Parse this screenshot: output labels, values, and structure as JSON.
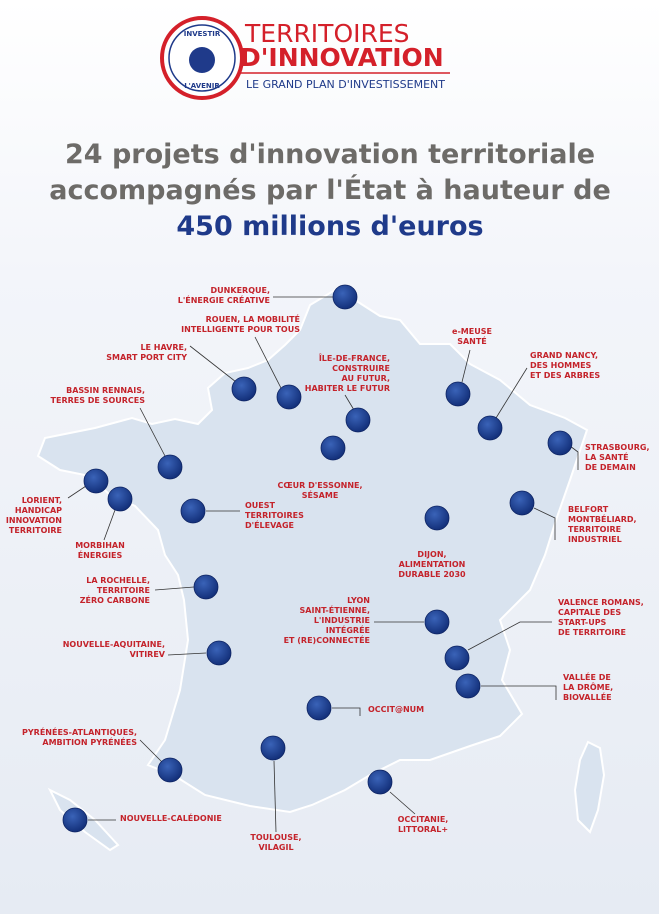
{
  "header": {
    "logo_top": "INVESTIR",
    "logo_bottom": "L'AVENIR",
    "line1": "TERRITOIRES",
    "line2": "D'INNOVATION",
    "line3": "LE GRAND PLAN D'INVESTISSEMENT"
  },
  "title": {
    "line1": "24 projets d'innovation territoriale",
    "line2": "accompagnés par l'État à hauteur de",
    "line3": "450 millions d'euros"
  },
  "projects": [
    {
      "label": [
        "DUNKERQUE,",
        "L'ÉNERGIE CRÉATIVE"
      ]
    },
    {
      "label": [
        "ROUEN, LA MOBILITÉ",
        "INTELLIGENTE POUR TOUS"
      ]
    },
    {
      "label": [
        "LE HAVRE,",
        "SMART PORT CITY"
      ]
    },
    {
      "label": [
        "ÎLE-DE-FRANCE,",
        "CONSTRUIRE",
        "AU FUTUR,",
        "HABITER LE FUTUR"
      ]
    },
    {
      "label": [
        "e-MEUSE",
        "SANTÉ"
      ]
    },
    {
      "label": [
        "GRAND NANCY,",
        "DES HOMMES",
        "ET DES ARBRES"
      ]
    },
    {
      "label": [
        "STRASBOURG,",
        "LA SANTÉ",
        "DE DEMAIN"
      ]
    },
    {
      "label": [
        "BASSIN RENNAIS,",
        "TERRES DE SOURCES"
      ]
    },
    {
      "label": [
        "CŒUR D'ESSONNE,",
        "SÉSAME"
      ]
    },
    {
      "label": [
        "LORIENT,",
        "HANDICAP",
        "INNOVATION",
        "TERRITOIRE"
      ]
    },
    {
      "label": [
        "MORBIHAN",
        "ÉNERGIES"
      ]
    },
    {
      "label": [
        "OUEST",
        "TERRITOIRES",
        "D'ÉLEVAGE"
      ]
    },
    {
      "label": [
        "BELFORT",
        "MONTBÉLIARD,",
        "TERRITOIRE",
        "INDUSTRIEL"
      ]
    },
    {
      "label": [
        "DIJON,",
        "ALIMENTATION",
        "DURABLE 2030"
      ]
    },
    {
      "label": [
        "LA ROCHELLE,",
        "TERRITOIRE",
        "ZÉRO CARBONE"
      ]
    },
    {
      "label": [
        "LYON",
        "SAINT-ÉTIENNE,",
        "L'INDUSTRIE",
        "INTÉGRÉE",
        "ET (RE)CONNECTÉE"
      ]
    },
    {
      "label": [
        "VALENCE ROMANS,",
        "CAPITALE DES",
        "START-UPS",
        "DE TERRITOIRE"
      ]
    },
    {
      "label": [
        "NOUVELLE-AQUITAINE,",
        "VITIREV"
      ]
    },
    {
      "label": [
        "VALLÉE DE",
        "LA DRÔME,",
        "BIOVALLÉE"
      ]
    },
    {
      "label": [
        "OCCIT@NUM"
      ]
    },
    {
      "label": [
        "PYRÉNÉES-ATLANTIQUES,",
        "AMBITION PYRÉNÉES"
      ]
    },
    {
      "label": [
        "TOULOUSE,",
        "VILAGIL"
      ]
    },
    {
      "label": [
        "OCCITANIE,",
        "LITTORAL+"
      ]
    },
    {
      "label": [
        "NOUVELLE-CALÉDONIE"
      ]
    }
  ]
}
